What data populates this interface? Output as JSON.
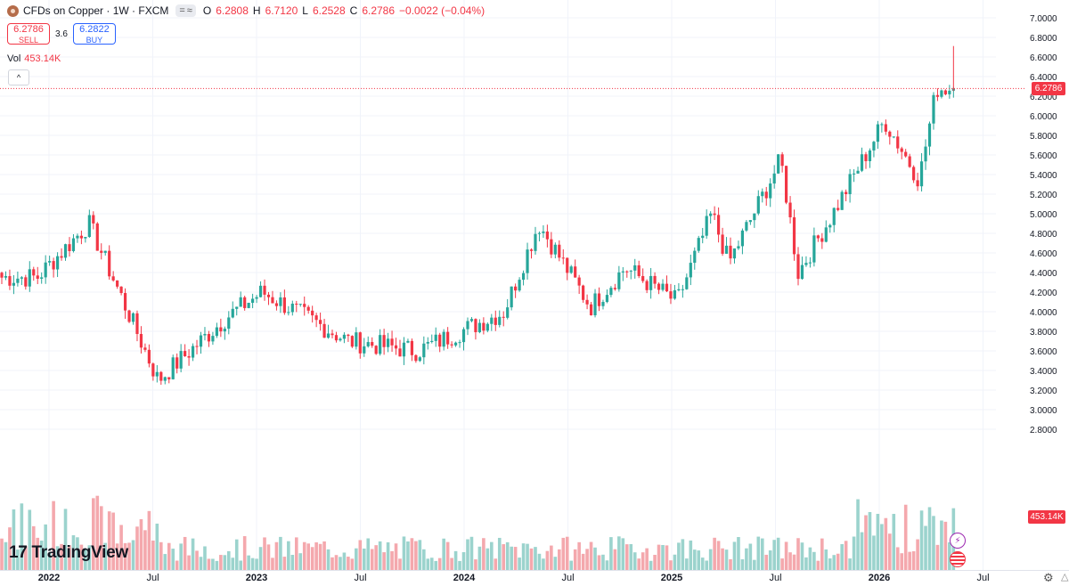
{
  "legend": {
    "symbol": "CFDs on Copper · 1W · FXCM",
    "toggle_a": "=",
    "toggle_b": "≈",
    "open_key": "O",
    "open": "6.2808",
    "high_key": "H",
    "high": "6.7120",
    "low_key": "L",
    "low": "6.2528",
    "close_key": "C",
    "close": "6.2786",
    "change": "−0.0022 (−0.04%)"
  },
  "trade": {
    "sell_price": "6.2786",
    "sell_label": "SELL",
    "spread": "3.6",
    "buy_price": "6.2822",
    "buy_label": "BUY"
  },
  "volume": {
    "label": "Vol",
    "value": "453.14K"
  },
  "collapse_icon": "^",
  "logo": {
    "mark": "17",
    "text": "TradingView"
  },
  "tags": {
    "last_price": "6.2786",
    "last_volume": "453.14K"
  },
  "icons": [
    "lightning-icon",
    "us-flag-icon",
    "settings-icon",
    "warning-icon"
  ],
  "colors": {
    "up": "#26a69a",
    "down": "#f23645",
    "vol_up": "#9bd3cd",
    "vol_down": "#f4a8ad",
    "grid": "#f0f3fa"
  },
  "chart_data": {
    "type": "candlestick",
    "timeframe": "1W",
    "y_axis_ticks": [
      "7.0000",
      "6.8000",
      "6.6000",
      "6.4000",
      "6.2000",
      "6.0000",
      "5.8000",
      "5.6000",
      "5.4000",
      "5.2000",
      "5.0000",
      "4.8000",
      "4.6000",
      "4.4000",
      "4.2000",
      "4.0000",
      "3.8000",
      "3.6000",
      "3.4000",
      "3.2000",
      "3.0000",
      "2.8000"
    ],
    "x_axis_ticks": [
      "2022",
      "Jul",
      "2023",
      "Jul",
      "2024",
      "Jul",
      "2025",
      "Jul",
      "2026",
      "Jul"
    ],
    "ylim": [
      2.8,
      7.0
    ],
    "last_price": 6.2786,
    "key_points": [
      {
        "date": "2021-12",
        "price": 4.35
      },
      {
        "date": "2022-03",
        "price": 4.9
      },
      {
        "date": "2022-07",
        "price": 3.3
      },
      {
        "date": "2022-11",
        "price": 3.95
      },
      {
        "date": "2023-01",
        "price": 4.2
      },
      {
        "date": "2023-06",
        "price": 3.7
      },
      {
        "date": "2023-10",
        "price": 3.6
      },
      {
        "date": "2024-03",
        "price": 4.0
      },
      {
        "date": "2024-05",
        "price": 4.9
      },
      {
        "date": "2024-08",
        "price": 4.05
      },
      {
        "date": "2024-10",
        "price": 4.45
      },
      {
        "date": "2025-01",
        "price": 4.1
      },
      {
        "date": "2025-03",
        "price": 5.0
      },
      {
        "date": "2025-04",
        "price": 4.5
      },
      {
        "date": "2025-07",
        "price": 5.55
      },
      {
        "date": "2025-08",
        "price": 4.4
      },
      {
        "date": "2025-10",
        "price": 5.0
      },
      {
        "date": "2026-01",
        "price": 5.95
      },
      {
        "date": "2026-03",
        "price": 5.35
      },
      {
        "date": "2026-04",
        "price": 6.28
      }
    ]
  }
}
